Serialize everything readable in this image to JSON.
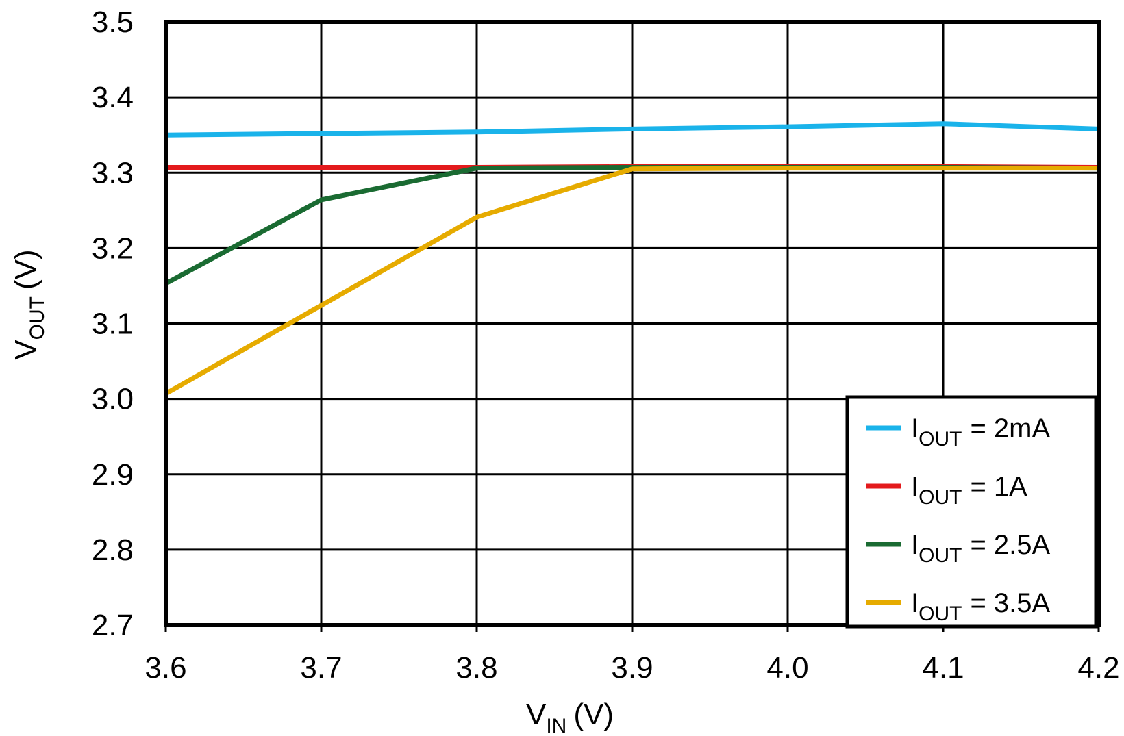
{
  "chart_data": {
    "type": "line",
    "title": "",
    "xlabel": {
      "main": "V",
      "sub": "IN",
      "unit": "(V)"
    },
    "ylabel": {
      "main": "V",
      "sub": "OUT",
      "unit": "(V)"
    },
    "xlim": [
      3.6,
      4.2
    ],
    "ylim": [
      2.7,
      3.5
    ],
    "x_ticks": [
      "3.6",
      "3.7",
      "3.8",
      "3.9",
      "4.0",
      "4.1",
      "4.2"
    ],
    "y_ticks": [
      "3.5",
      "3.4",
      "3.3",
      "3.2",
      "3.1",
      "3.0",
      "2.9",
      "2.8",
      "2.7"
    ],
    "grid": true,
    "legend_position": "bottom-right",
    "x": [
      3.6,
      3.7,
      3.8,
      3.9,
      4.0,
      4.1,
      4.2
    ],
    "series": [
      {
        "name_main": "I",
        "name_sub": "OUT",
        "name_rest": "= 2mA",
        "color": "#1ab3ea",
        "values": [
          3.35,
          3.352,
          3.354,
          3.358,
          3.361,
          3.365,
          3.358
        ]
      },
      {
        "name_main": "I",
        "name_sub": "OUT",
        "name_rest": "= 1A",
        "color": "#e31a1c",
        "values": [
          3.307,
          3.307,
          3.307,
          3.308,
          3.308,
          3.308,
          3.307
        ]
      },
      {
        "name_main": "I",
        "name_sub": "OUT",
        "name_rest": "= 2.5A",
        "color": "#1a6b32",
        "values": [
          3.153,
          3.264,
          3.306,
          3.307,
          3.307,
          3.307,
          3.306
        ]
      },
      {
        "name_main": "I",
        "name_sub": "OUT",
        "name_rest": "= 3.5A",
        "color": "#e6ab00",
        "values": [
          3.007,
          3.124,
          3.241,
          3.305,
          3.306,
          3.306,
          3.306
        ]
      }
    ]
  }
}
